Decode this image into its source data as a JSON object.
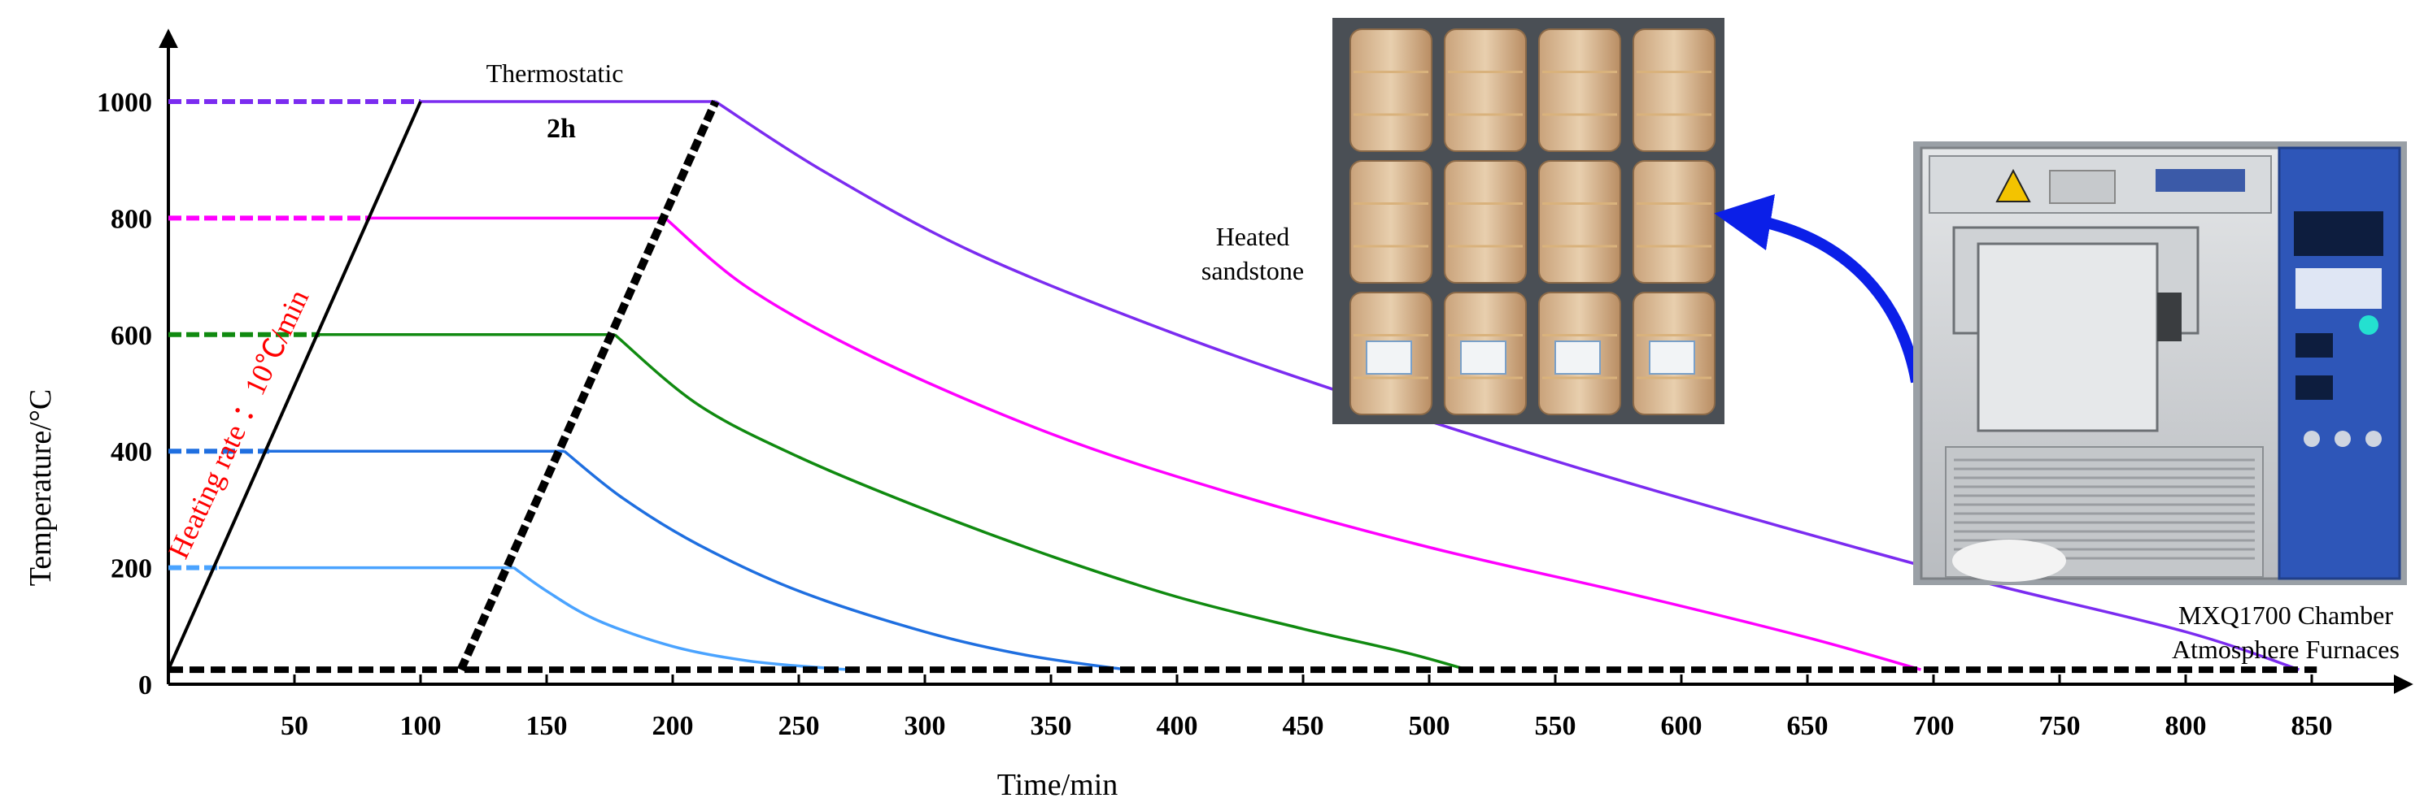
{
  "chart_data": {
    "type": "line",
    "xlabel": "Time/min",
    "ylabel": "Temperature/°C",
    "x_ticks": [
      50,
      100,
      150,
      200,
      250,
      300,
      350,
      400,
      450,
      500,
      550,
      600,
      650,
      700,
      750,
      800,
      850
    ],
    "y_ticks": [
      0,
      200,
      400,
      600,
      800,
      1000
    ],
    "xlim": [
      0,
      890
    ],
    "ylim": [
      0,
      1070
    ],
    "baseline_temperature": 25,
    "grid": false,
    "annotations": {
      "hold_label": "Thermostatic",
      "hold_duration": "2h",
      "rate_label": "Heating rate ：10℃/min"
    },
    "series": [
      {
        "color": "#4aa3ff",
        "target": 200,
        "heat": [
          [
            0,
            200
          ],
          [
            20,
            200
          ]
        ],
        "hold": [
          [
            20,
            200
          ],
          [
            137,
            200
          ]
        ],
        "cool": [
          [
            137,
            200
          ],
          [
            150,
            160
          ],
          [
            170,
            110
          ],
          [
            200,
            65
          ],
          [
            230,
            40
          ],
          [
            260,
            28
          ],
          [
            270,
            25
          ]
        ]
      },
      {
        "color": "#1f6fe0",
        "target": 400,
        "heat": [
          [
            0,
            400
          ],
          [
            40,
            400
          ]
        ],
        "hold": [
          [
            40,
            400
          ],
          [
            157,
            400
          ]
        ],
        "cool": [
          [
            157,
            400
          ],
          [
            180,
            320
          ],
          [
            210,
            240
          ],
          [
            250,
            160
          ],
          [
            300,
            90
          ],
          [
            340,
            50
          ],
          [
            380,
            25
          ]
        ]
      },
      {
        "color": "#108a10",
        "target": 600,
        "heat": [
          [
            0,
            600
          ],
          [
            60,
            600
          ]
        ],
        "hold": [
          [
            60,
            600
          ],
          [
            177,
            600
          ]
        ],
        "cool": [
          [
            177,
            600
          ],
          [
            210,
            480
          ],
          [
            250,
            390
          ],
          [
            300,
            300
          ],
          [
            350,
            220
          ],
          [
            400,
            150
          ],
          [
            450,
            95
          ],
          [
            490,
            55
          ],
          [
            515,
            25
          ]
        ]
      },
      {
        "color": "#ff00ff",
        "target": 800,
        "heat": [
          [
            0,
            800
          ],
          [
            80,
            800
          ]
        ],
        "hold": [
          [
            80,
            800
          ],
          [
            197,
            800
          ]
        ],
        "cool": [
          [
            197,
            800
          ],
          [
            230,
            680
          ],
          [
            280,
            560
          ],
          [
            350,
            430
          ],
          [
            420,
            330
          ],
          [
            500,
            235
          ],
          [
            580,
            155
          ],
          [
            650,
            80
          ],
          [
            695,
            25
          ]
        ]
      },
      {
        "color": "#7b2cf0",
        "target": 1000,
        "heat": [
          [
            0,
            1000
          ],
          [
            100,
            1000
          ]
        ],
        "hold": [
          [
            100,
            1000
          ],
          [
            217,
            1000
          ]
        ],
        "cool": [
          [
            217,
            1000
          ],
          [
            260,
            880
          ],
          [
            320,
            740
          ],
          [
            400,
            600
          ],
          [
            480,
            480
          ],
          [
            560,
            370
          ],
          [
            640,
            270
          ],
          [
            720,
            175
          ],
          [
            800,
            90
          ],
          [
            845,
            25
          ]
        ]
      }
    ],
    "heating_line": [
      [
        0,
        25
      ],
      [
        100,
        1000
      ]
    ],
    "hold_end_line": [
      [
        116,
        25
      ],
      [
        217,
        1000
      ]
    ],
    "baseline_line": [
      [
        0,
        25
      ],
      [
        852,
        25
      ]
    ]
  },
  "labels": {
    "sandstone": [
      "Heated",
      "sandstone"
    ],
    "furnace": [
      "MXQ1700 Chamber",
      "Atmosphere Furnaces"
    ]
  },
  "colors": {
    "arrow": "#0b1fe8",
    "axis": "#000000"
  }
}
